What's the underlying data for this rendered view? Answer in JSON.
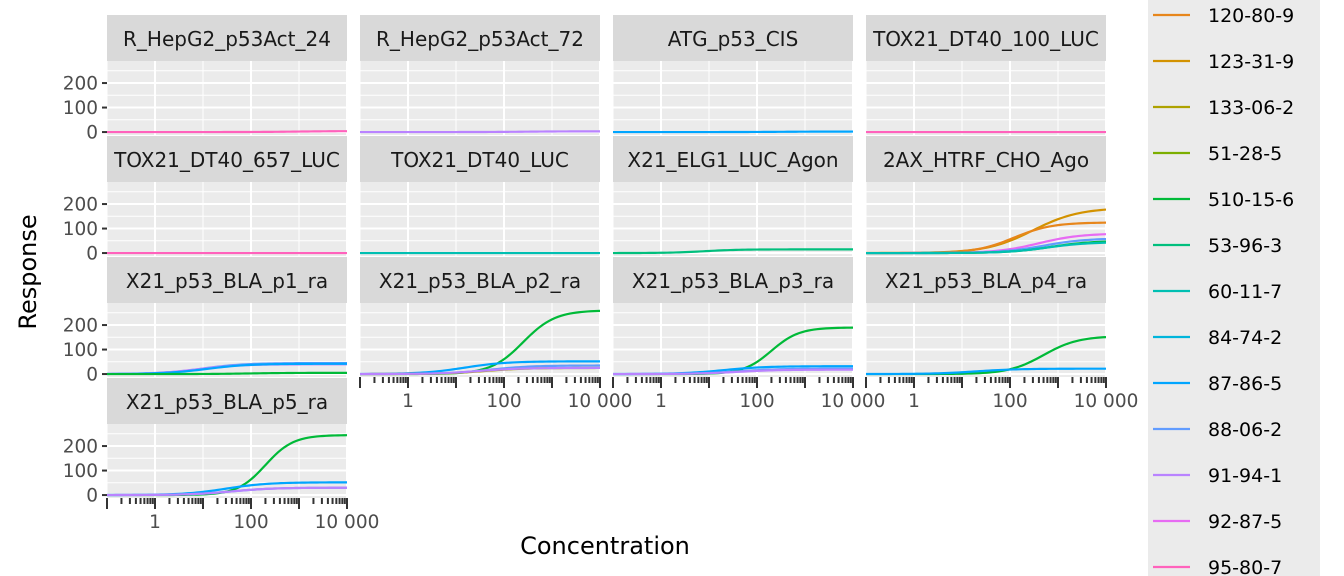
{
  "chart_data": {
    "type": "line",
    "xlabel": "Concentration",
    "ylabel": "Response",
    "x_scale": "log10",
    "x_tick_labels": [
      "1",
      "100",
      "10 000"
    ],
    "x_ticks": [
      1,
      100,
      10000
    ],
    "xlim": [
      0.1,
      10000
    ],
    "y_ticks": [
      0,
      100,
      200
    ],
    "y_tick_labels": [
      "0",
      "100",
      "200"
    ],
    "ylim": [
      -12,
      290
    ],
    "grid": true,
    "legend_position": "right",
    "series": [
      {
        "name": "120-80-9",
        "color": "#E7861B"
      },
      {
        "name": "123-31-9",
        "color": "#D39200"
      },
      {
        "name": "133-06-2",
        "color": "#AEA200"
      },
      {
        "name": "51-28-5",
        "color": "#7CAE00"
      },
      {
        "name": "510-15-6",
        "color": "#00BA38"
      },
      {
        "name": "53-96-3",
        "color": "#00BF7D"
      },
      {
        "name": "60-11-7",
        "color": "#00BFB2"
      },
      {
        "name": "84-74-2",
        "color": "#00B5DB"
      },
      {
        "name": "87-86-5",
        "color": "#00A5FF"
      },
      {
        "name": "88-06-2",
        "color": "#619CFF"
      },
      {
        "name": "91-94-1",
        "color": "#B983FF"
      },
      {
        "name": "92-87-5",
        "color": "#E76BF3"
      },
      {
        "name": "95-80-7",
        "color": "#FF62BC"
      }
    ],
    "panels": [
      {
        "title": "R_HepG2_p53Act_24",
        "curves": [
          {
            "series": "95-80-7",
            "top": 4,
            "ac50": 1000,
            "hill": 1
          }
        ]
      },
      {
        "title": "R_HepG2_p53Act_72",
        "curves": [
          {
            "series": "91-94-1",
            "top": 3,
            "ac50": 300,
            "hill": 1
          }
        ]
      },
      {
        "title": "ATG_p53_CIS",
        "curves": [
          {
            "series": "87-86-5",
            "top": 2,
            "ac50": 300,
            "hill": 1
          }
        ]
      },
      {
        "title": "TOX21_DT40_100_LUC",
        "curves": [
          {
            "series": "95-80-7",
            "top": 0,
            "ac50": 100,
            "hill": 1
          }
        ]
      },
      {
        "title": "TOX21_DT40_657_LUC",
        "curves": [
          {
            "series": "95-80-7",
            "top": 0,
            "ac50": 100,
            "hill": 1
          }
        ]
      },
      {
        "title": "TOX21_DT40_LUC",
        "curves": [
          {
            "series": "60-11-7",
            "top": 0,
            "ac50": 100,
            "hill": 1
          }
        ]
      },
      {
        "title": "X21_ELG1_LUC_Agon",
        "curves": [
          {
            "series": "53-96-3",
            "top": 15,
            "ac50": 8,
            "hill": 1.2
          }
        ]
      },
      {
        "title": "2AX_HTRF_CHO_Ago",
        "curves": [
          {
            "series": "123-31-9",
            "top": 185,
            "ac50": 300,
            "hill": 0.9
          },
          {
            "series": "120-80-9",
            "top": 125,
            "ac50": 120,
            "hill": 1.1
          },
          {
            "series": "92-87-5",
            "top": 80,
            "ac50": 400,
            "hill": 1
          },
          {
            "series": "88-06-2",
            "top": 60,
            "ac50": 500,
            "hill": 1
          },
          {
            "series": "510-15-6",
            "top": 50,
            "ac50": 700,
            "hill": 1
          },
          {
            "series": "60-11-7",
            "top": 45,
            "ac50": 600,
            "hill": 1
          }
        ]
      },
      {
        "title": "X21_p53_BLA_p1_ra",
        "curves": [
          {
            "series": "88-06-2",
            "top": 45,
            "ac50": 10,
            "hill": 1
          },
          {
            "series": "91-94-1",
            "top": 40,
            "ac50": 8,
            "hill": 1
          },
          {
            "series": "87-86-5",
            "top": 42,
            "ac50": 12,
            "hill": 1
          },
          {
            "series": "510-15-6",
            "top": 5,
            "ac50": 100,
            "hill": 1
          }
        ]
      },
      {
        "title": "X21_p53_BLA_p2_ra",
        "curves": [
          {
            "series": "510-15-6",
            "top": 260,
            "ac50": 250,
            "hill": 1.3
          },
          {
            "series": "87-86-5",
            "top": 52,
            "ac50": 15,
            "hill": 1
          },
          {
            "series": "88-06-2",
            "top": 35,
            "ac50": 50,
            "hill": 1
          },
          {
            "series": "133-06-2",
            "top": 25,
            "ac50": 40,
            "hill": 1
          },
          {
            "series": "91-94-1",
            "top": 25,
            "ac50": 30,
            "hill": 1
          }
        ]
      },
      {
        "title": "X21_p53_BLA_p3_ra",
        "curves": [
          {
            "series": "510-15-6",
            "top": 190,
            "ac50": 200,
            "hill": 1.5
          },
          {
            "series": "87-86-5",
            "top": 32,
            "ac50": 20,
            "hill": 1
          },
          {
            "series": "88-06-2",
            "top": 22,
            "ac50": 40,
            "hill": 1
          },
          {
            "series": "91-94-1",
            "top": 18,
            "ac50": 40,
            "hill": 1
          }
        ]
      },
      {
        "title": "X21_p53_BLA_p4_ra",
        "curves": [
          {
            "series": "510-15-6",
            "top": 155,
            "ac50": 500,
            "hill": 1.2
          },
          {
            "series": "87-86-5",
            "top": 22,
            "ac50": 20,
            "hill": 1
          }
        ]
      },
      {
        "title": "X21_p53_BLA_p5_ra",
        "curves": [
          {
            "series": "510-15-6",
            "top": 245,
            "ac50": 200,
            "hill": 1.5
          },
          {
            "series": "87-86-5",
            "top": 52,
            "ac50": 30,
            "hill": 1
          },
          {
            "series": "88-06-2",
            "top": 30,
            "ac50": 40,
            "hill": 1
          },
          {
            "series": "91-94-1",
            "top": 30,
            "ac50": 40,
            "hill": 1
          }
        ]
      }
    ]
  }
}
